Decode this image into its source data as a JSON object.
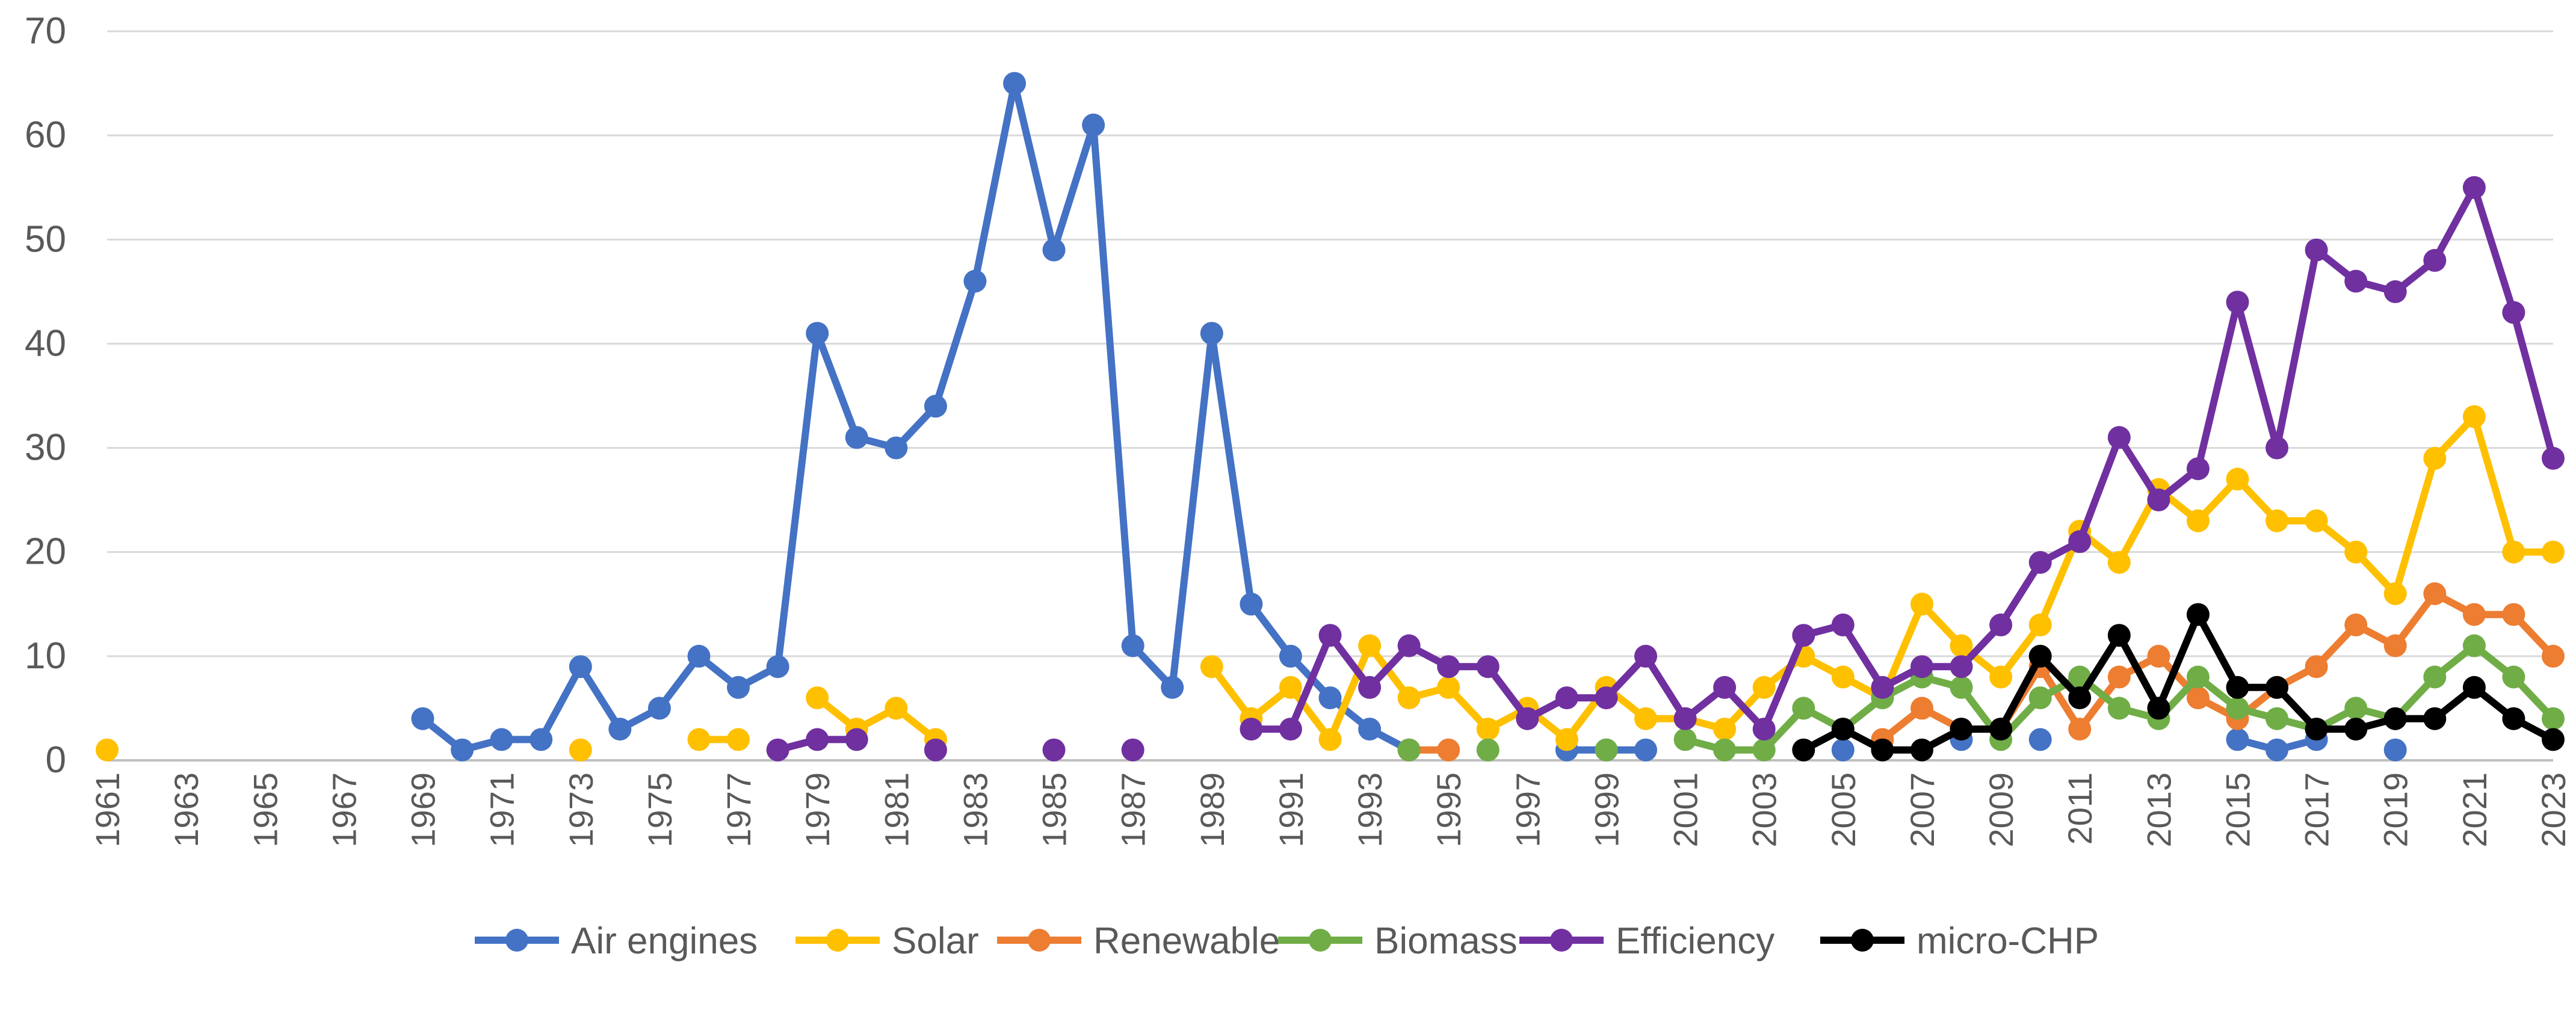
{
  "chart_data": {
    "type": "line",
    "title": "",
    "xlabel": "",
    "ylabel": "",
    "ylim": [
      0,
      70
    ],
    "yticks": [
      "0",
      "10",
      "20",
      "30",
      "40",
      "50",
      "60",
      "70"
    ],
    "grid": true,
    "legend_position": "bottom",
    "x": [
      1961,
      1962,
      1963,
      1964,
      1965,
      1966,
      1967,
      1968,
      1969,
      1970,
      1971,
      1972,
      1973,
      1974,
      1975,
      1976,
      1977,
      1978,
      1979,
      1980,
      1981,
      1982,
      1983,
      1984,
      1985,
      1986,
      1987,
      1988,
      1989,
      1990,
      1991,
      1992,
      1993,
      1994,
      1995,
      1996,
      1997,
      1998,
      1999,
      2000,
      2001,
      2002,
      2003,
      2004,
      2005,
      2006,
      2007,
      2008,
      2009,
      2010,
      2011,
      2012,
      2013,
      2014,
      2015,
      2016,
      2017,
      2018,
      2019,
      2020,
      2021,
      2022,
      2023
    ],
    "xtick_labels": [
      "1961",
      "1963",
      "1965",
      "1967",
      "1969",
      "1971",
      "1973",
      "1975",
      "1977",
      "1979",
      "1981",
      "1983",
      "1985",
      "1987",
      "1989",
      "1991",
      "1993",
      "1995",
      "1997",
      "1999",
      "2001",
      "2003",
      "2005",
      "2007",
      "2009",
      "2011",
      "2013",
      "2015",
      "2017",
      "2019",
      "2021",
      "2023"
    ],
    "series": [
      {
        "name": "Air engines",
        "color": "#4472C4",
        "values": [
          null,
          null,
          null,
          null,
          null,
          null,
          null,
          null,
          4,
          1,
          2,
          2,
          9,
          3,
          5,
          10,
          7,
          9,
          41,
          31,
          30,
          34,
          46,
          65,
          49,
          61,
          11,
          7,
          41,
          15,
          10,
          6,
          3,
          1,
          null,
          null,
          null,
          1,
          1,
          1,
          null,
          null,
          null,
          null,
          1,
          null,
          null,
          2,
          null,
          2,
          null,
          null,
          null,
          null,
          2,
          1,
          2,
          null,
          1,
          null,
          null,
          null,
          null
        ]
      },
      {
        "name": "Solar",
        "color": "#FFC000",
        "values": [
          1,
          null,
          null,
          null,
          null,
          null,
          null,
          null,
          null,
          null,
          null,
          null,
          1,
          null,
          null,
          2,
          2,
          null,
          6,
          3,
          5,
          2,
          null,
          null,
          null,
          null,
          null,
          null,
          9,
          4,
          7,
          2,
          11,
          6,
          7,
          3,
          5,
          2,
          7,
          4,
          4,
          3,
          7,
          10,
          8,
          6,
          15,
          11,
          8,
          13,
          22,
          19,
          26,
          23,
          27,
          23,
          23,
          20,
          16,
          29,
          33,
          20,
          20
        ]
      },
      {
        "name": "Renewable",
        "color": "#ED7D31",
        "values": [
          null,
          null,
          null,
          null,
          null,
          null,
          null,
          null,
          null,
          null,
          null,
          null,
          null,
          null,
          null,
          null,
          null,
          null,
          null,
          null,
          null,
          null,
          null,
          null,
          null,
          null,
          null,
          null,
          null,
          null,
          null,
          null,
          null,
          1,
          1,
          null,
          null,
          null,
          null,
          null,
          null,
          null,
          null,
          null,
          null,
          2,
          5,
          3,
          3,
          9,
          3,
          8,
          10,
          6,
          4,
          7,
          9,
          13,
          11,
          16,
          14,
          14,
          10
        ]
      },
      {
        "name": "Biomass",
        "color": "#70AD47",
        "values": [
          null,
          null,
          null,
          null,
          null,
          null,
          null,
          null,
          null,
          null,
          null,
          null,
          null,
          null,
          null,
          null,
          null,
          null,
          null,
          null,
          null,
          null,
          null,
          null,
          null,
          null,
          null,
          null,
          null,
          null,
          null,
          null,
          null,
          1,
          null,
          1,
          null,
          null,
          1,
          null,
          2,
          1,
          1,
          5,
          3,
          6,
          8,
          7,
          2,
          6,
          8,
          5,
          4,
          8,
          5,
          4,
          3,
          5,
          4,
          8,
          11,
          8,
          4
        ]
      },
      {
        "name": "Efficiency",
        "color": "#7030A0",
        "values": [
          null,
          null,
          null,
          null,
          null,
          null,
          null,
          null,
          null,
          null,
          null,
          null,
          null,
          null,
          null,
          null,
          null,
          1,
          2,
          2,
          null,
          1,
          null,
          null,
          1,
          null,
          1,
          null,
          null,
          3,
          3,
          12,
          7,
          11,
          9,
          9,
          4,
          6,
          6,
          10,
          4,
          7,
          3,
          12,
          13,
          7,
          9,
          9,
          13,
          19,
          21,
          31,
          25,
          28,
          44,
          30,
          49,
          46,
          45,
          48,
          55,
          43,
          29
        ]
      },
      {
        "name": "micro-CHP",
        "color": "#000000",
        "values": [
          null,
          null,
          null,
          null,
          null,
          null,
          null,
          null,
          null,
          null,
          null,
          null,
          null,
          null,
          null,
          null,
          null,
          null,
          null,
          null,
          null,
          null,
          null,
          null,
          null,
          null,
          null,
          null,
          null,
          null,
          null,
          null,
          null,
          null,
          null,
          null,
          null,
          null,
          null,
          null,
          null,
          null,
          null,
          1,
          3,
          1,
          1,
          3,
          3,
          10,
          6,
          12,
          5,
          14,
          7,
          7,
          3,
          3,
          4,
          4,
          7,
          4,
          2
        ]
      }
    ]
  }
}
